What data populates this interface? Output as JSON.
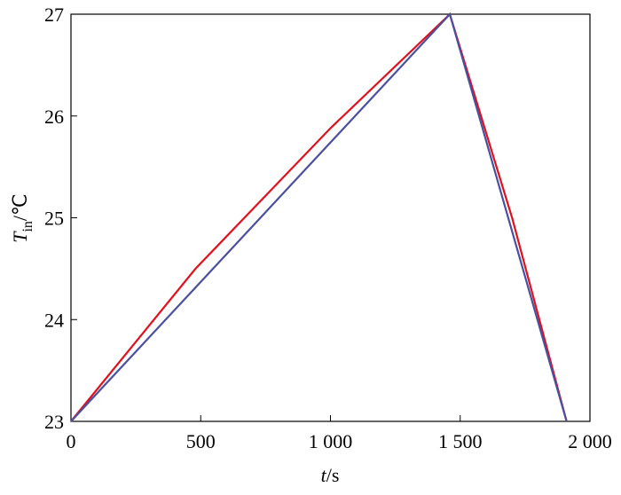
{
  "chart_data": {
    "type": "line",
    "x_label": {
      "symbol": "t",
      "unit": "/s"
    },
    "y_label": {
      "symbol": "T",
      "sub": "in",
      "unit": "/℃"
    },
    "xlim": [
      0,
      2000
    ],
    "xticks": [
      0,
      500,
      {
        "value": 1000,
        "label": "1 000"
      },
      {
        "value": 1500,
        "label": "1 500"
      },
      {
        "value": 2000,
        "label": "2 000"
      }
    ],
    "ylim": [
      23,
      27
    ],
    "yticks": [
      23,
      24,
      25,
      26,
      27
    ],
    "grid": false,
    "series": [
      {
        "color": "#e0101c",
        "x": [
          0,
          480,
          1000,
          1460,
          1700,
          1910
        ],
        "values": [
          23,
          24.5,
          25.88,
          27,
          25,
          23
        ]
      },
      {
        "color": "#4a4fa0",
        "x": [
          0,
          1460,
          1910
        ],
        "values": [
          23,
          27,
          23
        ]
      }
    ]
  }
}
